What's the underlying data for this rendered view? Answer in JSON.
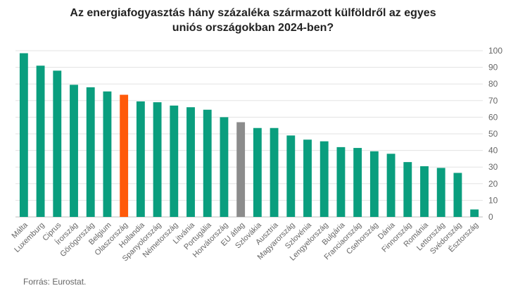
{
  "chart_data": {
    "type": "bar",
    "title_lines": [
      "Az energiafogyasztás hány százaléka származott külföldről az egyes",
      "uniós országokban 2024-ben?"
    ],
    "categories": [
      "Málta",
      "Luxemburg",
      "Ciprus",
      "Írország",
      "Görögország",
      "Belgium",
      "Olaszország",
      "Hollandia",
      "Spanyolország",
      "Németország",
      "Litvánia",
      "Portugália",
      "Horvátország",
      "EU átlag",
      "Szlovákia",
      "Ausztria",
      "Magyarország",
      "Szlovénia",
      "Lengyelország",
      "Bulgária",
      "Franciaország",
      "Csehország",
      "Dánia",
      "Finnország",
      "Románia",
      "Lettország",
      "Svédország",
      "Észtország"
    ],
    "values": [
      98.5,
      91,
      88,
      79.5,
      78,
      75.5,
      73.5,
      69.5,
      69,
      67,
      66,
      64.5,
      60,
      57,
      53.5,
      53.5,
      49,
      46.5,
      45.5,
      42,
      41.5,
      39.5,
      38,
      33,
      30.5,
      29.5,
      26.5,
      4.5
    ],
    "bar_colors": [
      "#0a9e7e",
      "#0a9e7e",
      "#0a9e7e",
      "#0a9e7e",
      "#0a9e7e",
      "#0a9e7e",
      "#ff5a0a",
      "#0a9e7e",
      "#0a9e7e",
      "#0a9e7e",
      "#0a9e7e",
      "#0a9e7e",
      "#0a9e7e",
      "#8c8c8c",
      "#0a9e7e",
      "#0a9e7e",
      "#0a9e7e",
      "#0a9e7e",
      "#0a9e7e",
      "#0a9e7e",
      "#0a9e7e",
      "#0a9e7e",
      "#0a9e7e",
      "#0a9e7e",
      "#0a9e7e",
      "#0a9e7e",
      "#0a9e7e",
      "#0a9e7e"
    ],
    "ylim": [
      0,
      100
    ],
    "yticks": [
      0,
      10,
      20,
      30,
      40,
      50,
      60,
      70,
      80,
      90,
      100
    ],
    "xlabel": "",
    "ylabel": "",
    "grid": true,
    "axis_position": "right"
  },
  "source_text": "Forrás:  Eurostat."
}
